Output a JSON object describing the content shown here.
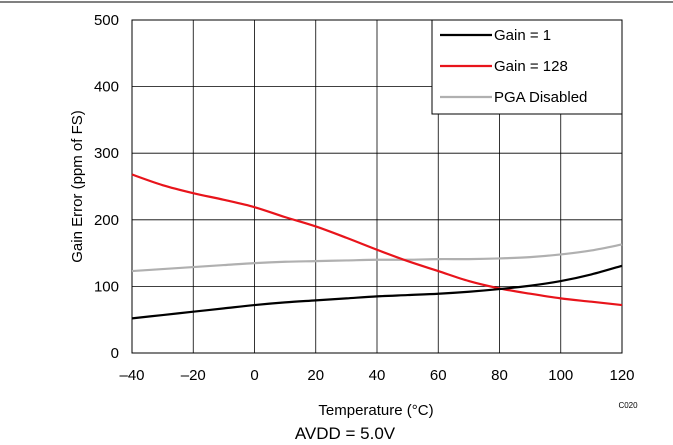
{
  "chart_data": {
    "type": "line",
    "xlabel": "Temperature (°C)",
    "ylabel": "Gain Error (ppm of FS)",
    "xlim": [
      -40,
      120
    ],
    "ylim": [
      0,
      500
    ],
    "xticks": [
      -40,
      -20,
      0,
      20,
      40,
      60,
      80,
      100,
      120
    ],
    "xtick_labels": [
      "–40",
      "–20",
      "0",
      "20",
      "40",
      "60",
      "80",
      "100",
      "120"
    ],
    "yticks": [
      0,
      100,
      200,
      300,
      400,
      500
    ],
    "ytick_labels": [
      "0",
      "100",
      "200",
      "300",
      "400",
      "500"
    ],
    "grid": true,
    "legend_position": "top-right",
    "series": [
      {
        "name": "Gain = 1",
        "color": "#000000",
        "x": [
          -40,
          -30,
          -20,
          -10,
          0,
          10,
          20,
          30,
          40,
          50,
          60,
          70,
          80,
          90,
          100,
          110,
          120
        ],
        "y": [
          52,
          57,
          62,
          67,
          72,
          76,
          79,
          82,
          85,
          87,
          89,
          92,
          96,
          101,
          108,
          118,
          131
        ]
      },
      {
        "name": "Gain = 128",
        "color": "#e8141b",
        "x": [
          -40,
          -30,
          -20,
          -10,
          0,
          10,
          20,
          30,
          40,
          50,
          60,
          70,
          80,
          90,
          100,
          110,
          120
        ],
        "y": [
          268,
          252,
          240,
          230,
          219,
          204,
          190,
          173,
          155,
          138,
          123,
          108,
          97,
          89,
          82,
          77,
          72
        ]
      },
      {
        "name": "PGA Disabled",
        "color": "#b0b0b0",
        "x": [
          -40,
          -30,
          -20,
          -10,
          0,
          10,
          20,
          30,
          40,
          50,
          60,
          70,
          80,
          90,
          100,
          110,
          120
        ],
        "y": [
          123,
          126,
          129,
          132,
          135,
          137,
          138,
          139,
          140,
          140,
          141,
          141,
          142,
          144,
          148,
          154,
          163
        ]
      }
    ],
    "annotations": {
      "code": "C020",
      "caption": "AVDD = 5.0V"
    }
  }
}
